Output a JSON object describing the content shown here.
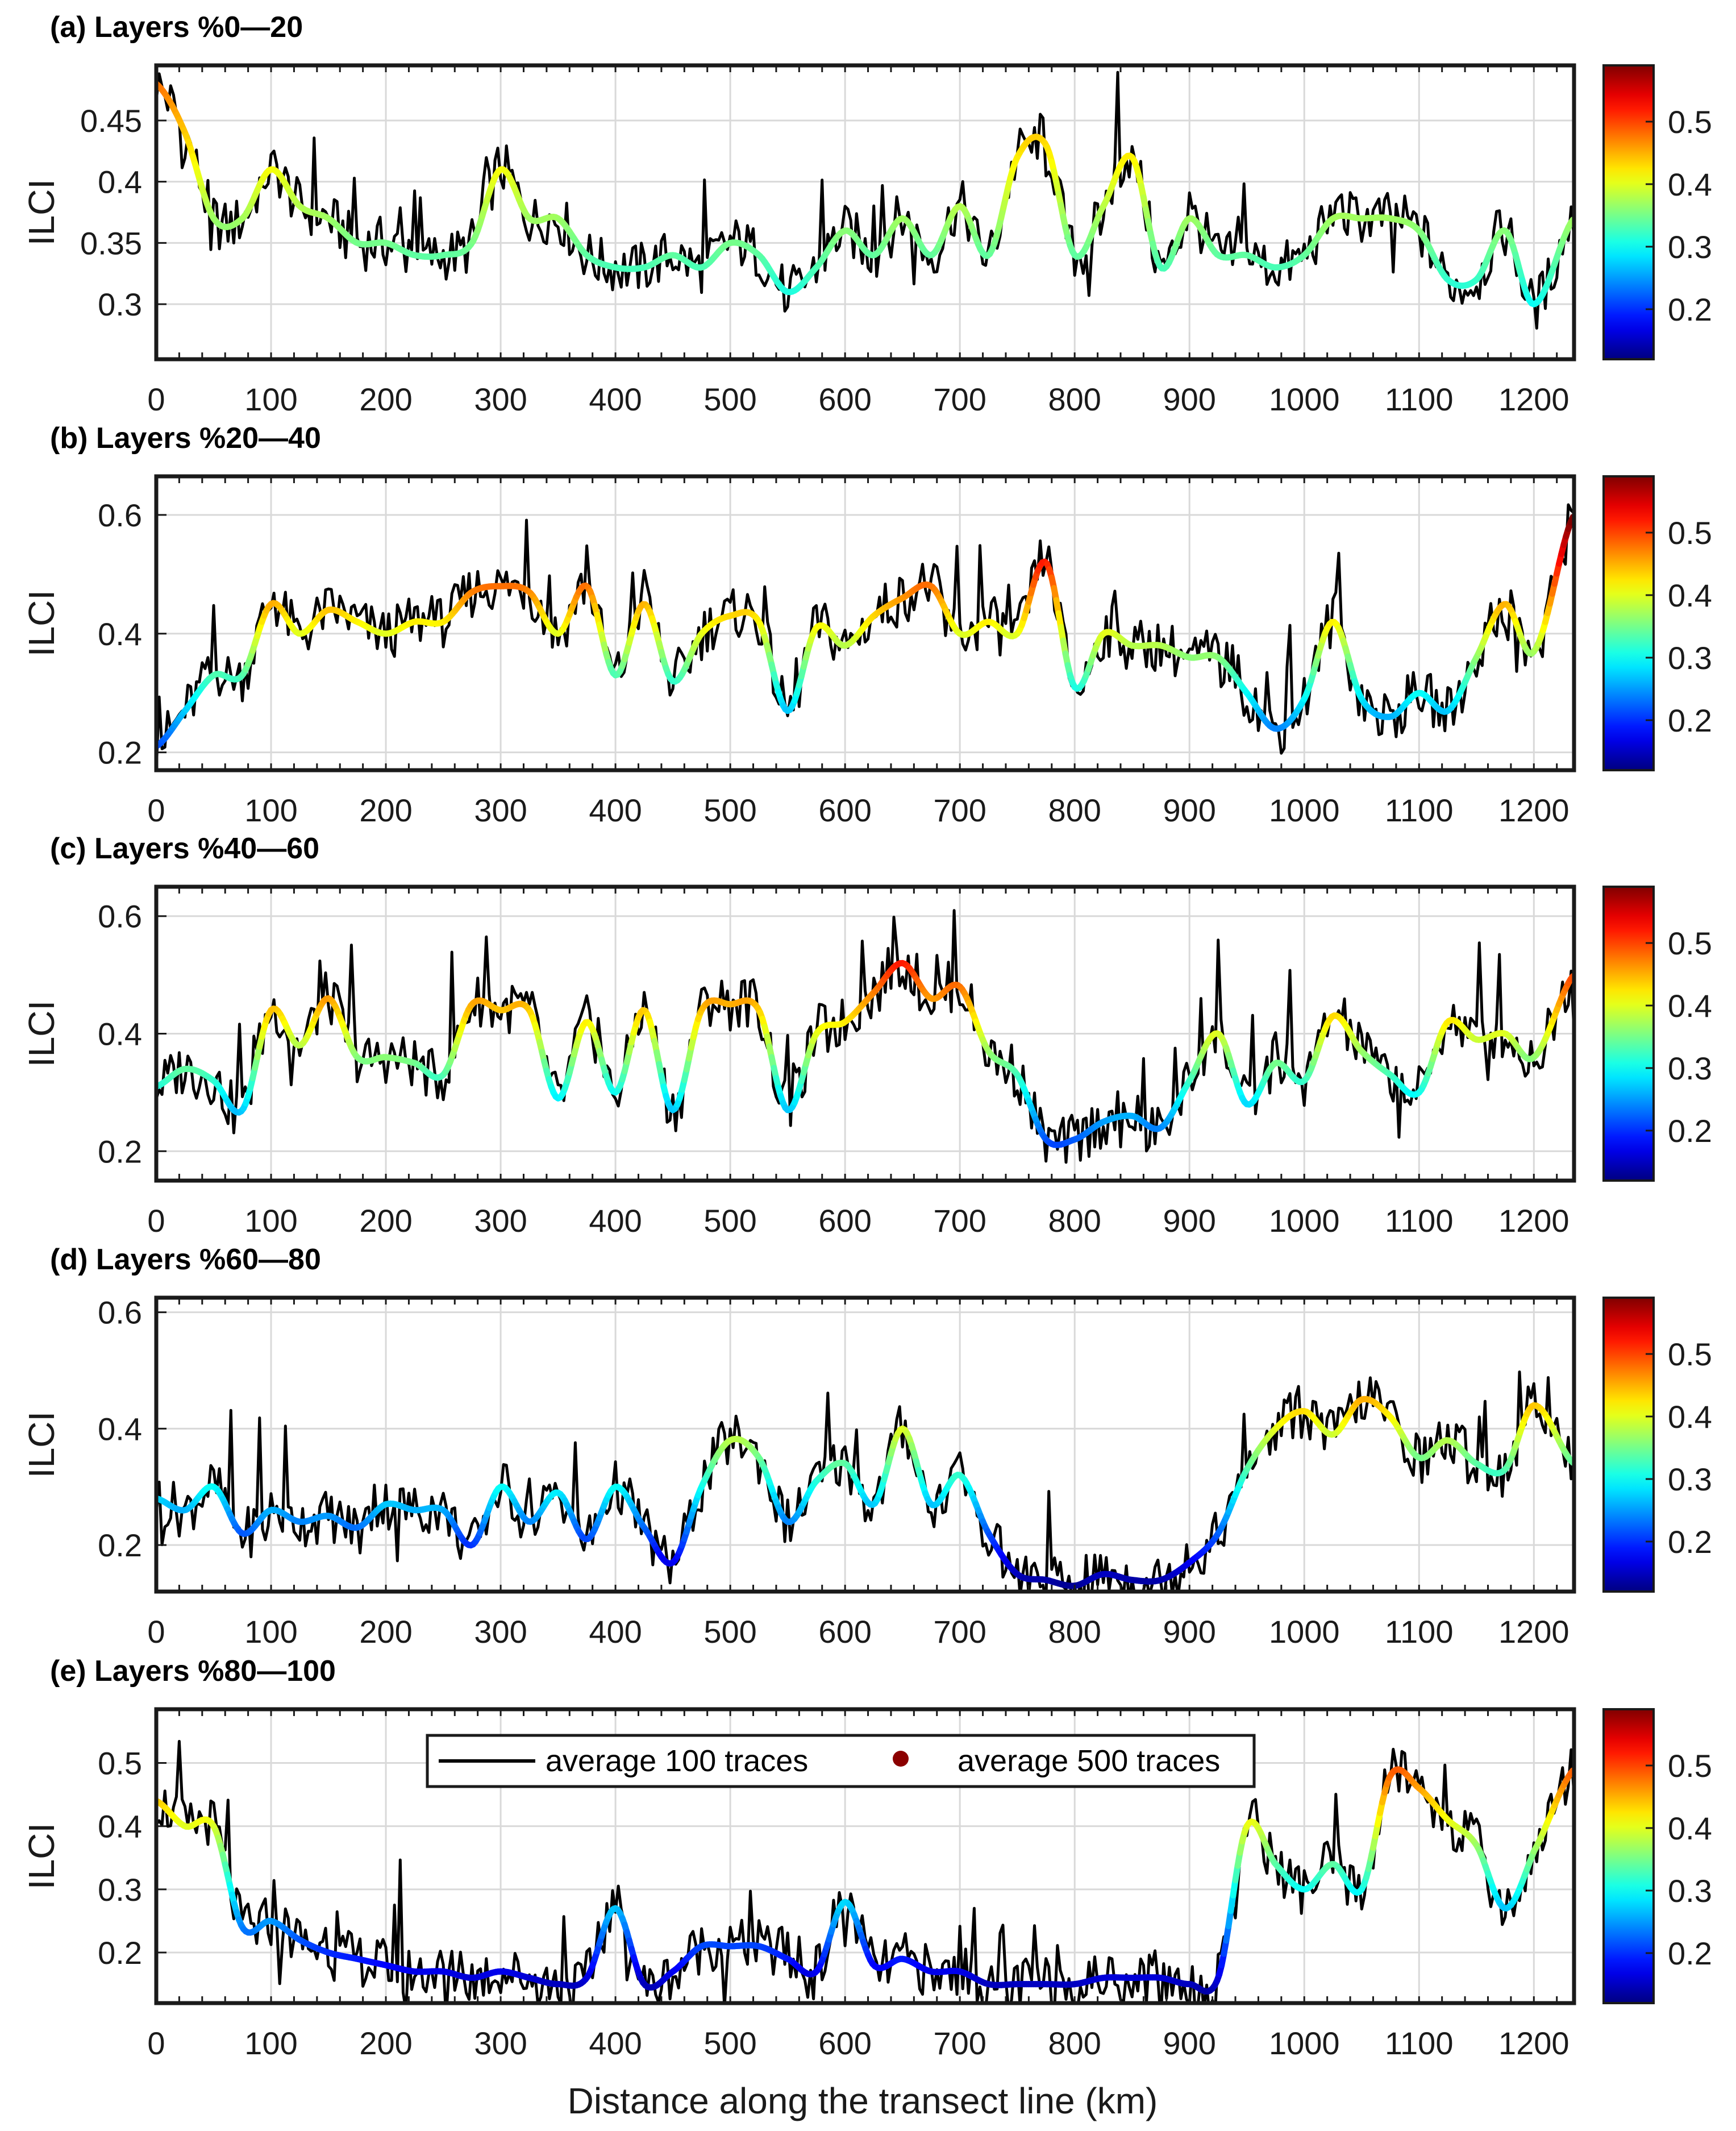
{
  "figure": {
    "xlabel": "Distance along the transect line (km)",
    "colormap": "jet",
    "colorbar_range": [
      0.12,
      0.59
    ],
    "colorbar_ticks": [
      0.2,
      0.3,
      0.4,
      0.5
    ],
    "colorbar_tick_labels": [
      "0.2",
      "0.3",
      "0.4",
      "0.5"
    ],
    "x_ticks": [
      0,
      100,
      200,
      300,
      400,
      500,
      600,
      700,
      800,
      900,
      1000,
      1100,
      1200
    ],
    "x_tick_labels": [
      "0",
      "100",
      "200",
      "300",
      "400",
      "500",
      "600",
      "700",
      "800",
      "900",
      "1000",
      "1100",
      "1200"
    ],
    "xlim": [
      0,
      1235
    ],
    "raw_color": "#000000",
    "grid_color": "#d9d9d9",
    "legend": {
      "line_label": "average 100 traces",
      "dot_label": "average 500 traces",
      "dot_color": "#8b0000"
    }
  },
  "chart_data": [
    {
      "type": "line",
      "title": "(a) Layers %0—20",
      "ylabel": "ILCI",
      "ylim": [
        0.255,
        0.495
      ],
      "yticks": [
        0.3,
        0.35,
        0.4,
        0.45
      ],
      "ytick_labels": [
        "0.3",
        "0.35",
        "0.4",
        "0.45"
      ],
      "series": [
        {
          "name": "average 500 traces (smoothed, colored)",
          "x": [
            0,
            25,
            50,
            75,
            100,
            125,
            150,
            175,
            200,
            225,
            250,
            275,
            300,
            325,
            350,
            375,
            400,
            425,
            450,
            475,
            500,
            525,
            550,
            575,
            600,
            625,
            650,
            675,
            700,
            725,
            750,
            775,
            800,
            825,
            850,
            875,
            900,
            925,
            950,
            975,
            1000,
            1025,
            1050,
            1075,
            1100,
            1125,
            1150,
            1175,
            1200,
            1235
          ],
          "values": [
            0.48,
            0.44,
            0.37,
            0.37,
            0.41,
            0.38,
            0.37,
            0.35,
            0.35,
            0.34,
            0.34,
            0.35,
            0.41,
            0.37,
            0.37,
            0.34,
            0.33,
            0.33,
            0.34,
            0.33,
            0.35,
            0.34,
            0.31,
            0.33,
            0.36,
            0.34,
            0.37,
            0.34,
            0.38,
            0.34,
            0.42,
            0.43,
            0.34,
            0.38,
            0.42,
            0.33,
            0.37,
            0.34,
            0.34,
            0.33,
            0.34,
            0.37,
            0.37,
            0.37,
            0.36,
            0.32,
            0.32,
            0.36,
            0.3,
            0.37
          ]
        }
      ]
    },
    {
      "type": "line",
      "title": "(b) Layers %20—40",
      "ylabel": "ILCI",
      "ylim": [
        0.17,
        0.665
      ],
      "yticks": [
        0.2,
        0.4,
        0.6
      ],
      "ytick_labels": [
        "0.2",
        "0.4",
        "0.6"
      ],
      "series": [
        {
          "name": "average 500 traces (smoothed, colored)",
          "x": [
            0,
            25,
            50,
            75,
            100,
            125,
            150,
            175,
            200,
            225,
            250,
            275,
            300,
            325,
            350,
            375,
            400,
            425,
            450,
            475,
            500,
            525,
            550,
            575,
            600,
            625,
            650,
            675,
            700,
            725,
            750,
            775,
            800,
            825,
            850,
            875,
            900,
            925,
            950,
            975,
            1000,
            1025,
            1050,
            1075,
            1100,
            1125,
            1150,
            1175,
            1200,
            1235
          ],
          "values": [
            0.21,
            0.27,
            0.33,
            0.33,
            0.45,
            0.4,
            0.44,
            0.42,
            0.4,
            0.42,
            0.42,
            0.47,
            0.48,
            0.47,
            0.4,
            0.48,
            0.33,
            0.45,
            0.32,
            0.4,
            0.43,
            0.42,
            0.27,
            0.41,
            0.38,
            0.43,
            0.46,
            0.48,
            0.4,
            0.42,
            0.4,
            0.52,
            0.31,
            0.4,
            0.38,
            0.38,
            0.36,
            0.36,
            0.3,
            0.24,
            0.29,
            0.42,
            0.29,
            0.26,
            0.3,
            0.27,
            0.36,
            0.45,
            0.37,
            0.6
          ]
        }
      ]
    },
    {
      "type": "line",
      "title": "(c) Layers %40—60",
      "ylabel": "ILCI",
      "ylim": [
        0.15,
        0.65
      ],
      "yticks": [
        0.2,
        0.4,
        0.6
      ],
      "ytick_labels": [
        "0.2",
        "0.4",
        "0.6"
      ],
      "series": [
        {
          "name": "average 500 traces (smoothed, colored)",
          "x": [
            0,
            25,
            50,
            75,
            100,
            125,
            150,
            175,
            200,
            225,
            250,
            275,
            300,
            325,
            350,
            375,
            400,
            425,
            450,
            475,
            500,
            525,
            550,
            575,
            600,
            625,
            650,
            675,
            700,
            725,
            750,
            775,
            800,
            825,
            850,
            875,
            900,
            925,
            950,
            975,
            1000,
            1025,
            1050,
            1075,
            1100,
            1125,
            1150,
            1175,
            1200,
            1235
          ],
          "values": [
            0.31,
            0.34,
            0.32,
            0.27,
            0.44,
            0.38,
            0.46,
            0.36,
            0.36,
            0.35,
            0.33,
            0.45,
            0.44,
            0.44,
            0.29,
            0.42,
            0.3,
            0.44,
            0.27,
            0.44,
            0.45,
            0.44,
            0.27,
            0.4,
            0.42,
            0.47,
            0.52,
            0.46,
            0.48,
            0.37,
            0.33,
            0.22,
            0.22,
            0.25,
            0.26,
            0.24,
            0.32,
            0.4,
            0.28,
            0.35,
            0.32,
            0.43,
            0.37,
            0.33,
            0.3,
            0.42,
            0.39,
            0.4,
            0.36,
            0.5
          ]
        }
      ]
    },
    {
      "type": "line",
      "title": "(d) Layers %60—80",
      "ylabel": "ILCI",
      "ylim": [
        0.12,
        0.625
      ],
      "yticks": [
        0.2,
        0.4,
        0.6
      ],
      "ytick_labels": [
        "0.2",
        "0.4",
        "0.6"
      ],
      "series": [
        {
          "name": "average 500 traces (smoothed, colored)",
          "x": [
            0,
            25,
            50,
            75,
            100,
            125,
            150,
            175,
            200,
            225,
            250,
            275,
            300,
            325,
            350,
            375,
            400,
            425,
            450,
            475,
            500,
            525,
            550,
            575,
            600,
            625,
            650,
            675,
            700,
            725,
            750,
            775,
            800,
            825,
            850,
            875,
            900,
            925,
            950,
            975,
            1000,
            1025,
            1050,
            1075,
            1100,
            1125,
            1150,
            1175,
            1200,
            1235
          ],
          "values": [
            0.28,
            0.26,
            0.3,
            0.22,
            0.26,
            0.24,
            0.25,
            0.23,
            0.27,
            0.26,
            0.26,
            0.2,
            0.3,
            0.24,
            0.29,
            0.21,
            0.3,
            0.23,
            0.17,
            0.3,
            0.38,
            0.35,
            0.24,
            0.31,
            0.34,
            0.27,
            0.4,
            0.27,
            0.32,
            0.22,
            0.15,
            0.14,
            0.13,
            0.15,
            0.14,
            0.14,
            0.17,
            0.22,
            0.33,
            0.4,
            0.43,
            0.39,
            0.45,
            0.42,
            0.35,
            0.38,
            0.34,
            0.33,
            0.44,
            0.34
          ]
        }
      ]
    },
    {
      "type": "line",
      "title": "(e) Layers %80—100",
      "ylabel": "ILCI",
      "ylim": [
        0.12,
        0.585
      ],
      "yticks": [
        0.2,
        0.3,
        0.4,
        0.5
      ],
      "ytick_labels": [
        "0.2",
        "0.3",
        "0.4",
        "0.5"
      ],
      "series": [
        {
          "name": "average 500 traces (smoothed, colored)",
          "x": [
            0,
            25,
            50,
            75,
            100,
            125,
            150,
            175,
            200,
            225,
            250,
            275,
            300,
            325,
            350,
            375,
            400,
            425,
            450,
            475,
            500,
            525,
            550,
            575,
            600,
            625,
            650,
            675,
            700,
            725,
            750,
            775,
            800,
            825,
            850,
            875,
            900,
            925,
            950,
            975,
            1000,
            1025,
            1050,
            1075,
            1100,
            1125,
            1150,
            1175,
            1200,
            1235
          ],
          "values": [
            0.44,
            0.4,
            0.4,
            0.24,
            0.25,
            0.22,
            0.2,
            0.19,
            0.18,
            0.17,
            0.17,
            0.16,
            0.17,
            0.16,
            0.15,
            0.16,
            0.27,
            0.15,
            0.17,
            0.21,
            0.21,
            0.21,
            0.19,
            0.17,
            0.28,
            0.18,
            0.19,
            0.17,
            0.17,
            0.15,
            0.15,
            0.15,
            0.15,
            0.16,
            0.16,
            0.16,
            0.15,
            0.16,
            0.4,
            0.34,
            0.3,
            0.34,
            0.3,
            0.48,
            0.46,
            0.41,
            0.37,
            0.27,
            0.36,
            0.49
          ]
        }
      ]
    }
  ]
}
